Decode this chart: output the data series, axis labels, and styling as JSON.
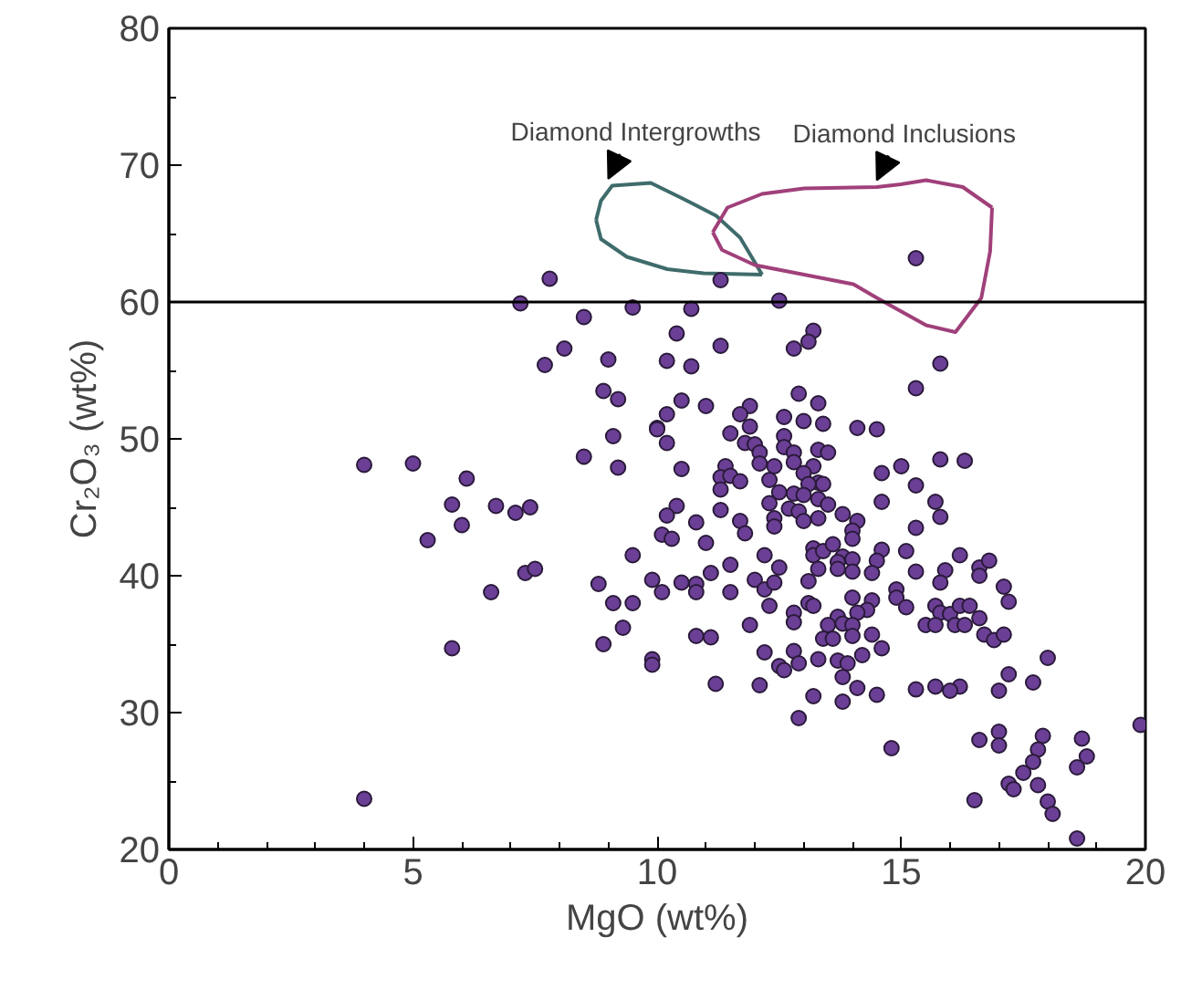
{
  "chart_data": {
    "type": "scatter",
    "xlabel": "MgO (wt%)",
    "ylabel": "Cr₂O₃ (wt%)",
    "xlim": [
      0,
      20
    ],
    "ylim": [
      20,
      80
    ],
    "xticks": [
      0,
      5,
      10,
      15,
      20
    ],
    "yticks": [
      20,
      30,
      40,
      50,
      60,
      70,
      80
    ],
    "grid": false,
    "marker": "circle",
    "ref_lines": [
      {
        "axis": "y",
        "value": 60,
        "color": "#000000"
      }
    ],
    "annotations": [
      {
        "text": "Diamond Intergrowths",
        "x": 9.0,
        "y": 69.0
      },
      {
        "text": "Diamond Inclusions",
        "x": 14.5,
        "y": 68.9
      }
    ],
    "series": [
      {
        "type": "line",
        "marker": "none",
        "color": "#3f6b6b",
        "x": [
          8.75,
          8.85,
          9.08,
          9.87,
          10.5,
          11.21,
          11.7,
          12.15
        ],
        "values": [
          66.0,
          67.4,
          68.5,
          68.7,
          67.6,
          66.3,
          64.7,
          62.0
        ]
      },
      {
        "type": "line",
        "marker": "none",
        "color": "#3f6b6b",
        "x": [
          8.75,
          8.85,
          9.38,
          10.21,
          10.95,
          12.15
        ],
        "values": [
          66.0,
          64.6,
          63.3,
          62.4,
          62.1,
          62.0
        ]
      },
      {
        "type": "line",
        "marker": "none",
        "color": "#a0407a",
        "x": [
          11.14,
          11.44,
          12.15,
          13.01,
          14.5,
          14.99,
          15.51,
          16.26,
          16.86
        ],
        "values": [
          65.1,
          66.9,
          67.9,
          68.3,
          68.4,
          68.6,
          68.9,
          68.4,
          66.9
        ]
      },
      {
        "type": "line",
        "marker": "none",
        "color": "#a0407a",
        "x": [
          11.14,
          11.33,
          12.0,
          13.01,
          14.02,
          14.5,
          15.51,
          16.11,
          16.64,
          16.82,
          16.86
        ],
        "values": [
          65.1,
          63.8,
          62.7,
          62.0,
          61.3,
          60.3,
          58.3,
          57.8,
          60.3,
          63.7,
          66.9
        ]
      },
      {
        "type": "scatter",
        "color": "#6b3f95",
        "x": [
          5.8,
          6.7,
          7.1,
          7.4,
          5.3,
          6.0,
          9.5,
          7.3,
          7.5,
          6.6,
          8.8,
          9.1,
          9.5,
          9.3,
          8.9,
          5.8,
          9.9,
          4.0,
          7.8,
          7.2,
          8.5,
          9.5,
          8.1,
          7.7,
          9.0,
          8.9,
          9.2,
          9.1,
          10.0,
          8.5,
          9.2,
          4.0,
          5.0,
          6.1,
          15.3,
          11.3,
          12.5,
          10.7,
          10.4,
          11.3,
          13.2,
          13.1,
          12.8,
          15.8,
          15.3,
          10.2,
          10.7,
          10.5,
          11.0,
          10.2,
          10.0,
          10.2,
          11.9,
          11.7,
          11.9,
          11.5,
          12.6,
          12.9,
          13.3,
          13.0,
          13.4,
          14.1,
          14.5,
          12.6,
          11.8,
          12.0,
          12.1,
          12.6,
          12.8,
          13.3,
          13.5,
          12.1,
          12.4,
          12.8,
          13.2,
          10.5,
          11.4,
          11.3,
          11.5,
          11.7,
          11.3,
          12.3,
          13.0,
          13.3,
          13.4,
          13.1,
          12.5,
          12.8,
          13.0,
          13.3,
          14.6,
          15.0,
          15.8,
          16.3,
          15.3,
          14.6,
          15.7,
          10.4,
          12.3,
          13.5,
          10.2,
          10.8,
          11.3,
          11.7,
          11.8,
          10.1,
          10.3,
          11.0,
          12.4,
          12.4,
          12.7,
          12.9,
          13.0,
          13.3,
          13.8,
          14.1,
          14.0,
          14.0,
          15.8,
          15.3,
          13.2,
          13.2,
          13.4,
          13.6,
          13.8,
          13.7,
          14.0,
          13.7,
          14.0,
          13.3,
          12.5,
          12.2,
          11.5,
          11.1,
          10.5,
          10.1,
          10.8,
          10.8,
          11.5,
          12.0,
          12.2,
          12.4,
          13.1,
          14.6,
          14.5,
          14.4,
          15.1,
          15.3,
          15.9,
          15.8,
          16.2,
          16.6,
          16.8,
          16.6,
          17.1,
          17.2,
          14.9,
          14.9,
          15.1,
          14.4,
          14.0,
          14.3,
          14.1,
          13.7,
          13.5,
          13.8,
          14.0,
          14.0,
          14.4,
          14.6,
          14.2,
          13.4,
          13.6,
          13.1,
          13.2,
          12.8,
          12.8,
          12.3,
          11.9,
          10.8,
          11.1,
          9.9,
          9.9,
          12.2,
          12.8,
          12.5,
          12.6,
          12.9,
          13.3,
          13.7,
          13.9,
          13.8,
          11.2,
          12.1,
          13.2,
          13.8,
          14.1,
          14.5,
          12.9,
          15.7,
          15.8,
          15.5,
          15.7,
          16.0,
          16.2,
          16.4,
          16.1,
          16.3,
          16.6,
          16.7,
          16.9,
          17.1,
          18.0,
          17.2,
          17.7,
          17.0,
          16.2,
          16.0,
          15.7,
          15.3,
          19.9,
          17.0,
          17.0,
          16.6,
          17.9,
          17.8,
          17.7,
          17.5,
          17.2,
          17.3,
          17.8,
          18.0,
          18.1,
          18.7,
          18.8,
          18.6,
          18.6,
          16.5,
          14.8
        ],
        "values": [
          45.2,
          45.1,
          44.6,
          45.0,
          42.6,
          43.7,
          41.5,
          40.2,
          40.5,
          38.8,
          39.4,
          38.0,
          38.0,
          36.2,
          35.0,
          34.7,
          39.7,
          23.7,
          61.7,
          59.9,
          58.9,
          59.6,
          56.6,
          55.4,
          55.8,
          53.5,
          52.9,
          50.2,
          50.8,
          48.7,
          47.9,
          48.1,
          48.2,
          47.1,
          63.2,
          61.6,
          60.1,
          59.5,
          57.7,
          56.8,
          57.9,
          57.1,
          56.6,
          55.5,
          53.7,
          55.7,
          55.3,
          52.8,
          52.4,
          51.8,
          50.7,
          49.7,
          52.4,
          51.8,
          50.9,
          50.4,
          51.6,
          53.3,
          52.6,
          51.3,
          51.1,
          50.8,
          50.7,
          50.2,
          49.7,
          49.6,
          49.0,
          49.4,
          49.0,
          49.2,
          49.0,
          48.2,
          48.0,
          48.3,
          48.0,
          47.8,
          48.0,
          47.2,
          47.3,
          46.9,
          46.3,
          47.0,
          47.5,
          46.8,
          46.7,
          46.7,
          46.1,
          46.0,
          45.9,
          45.6,
          47.5,
          48.0,
          48.5,
          48.4,
          46.6,
          45.4,
          45.4,
          45.1,
          45.3,
          45.2,
          44.4,
          43.9,
          44.8,
          44.0,
          43.1,
          43.0,
          42.7,
          42.4,
          44.2,
          43.6,
          44.9,
          44.7,
          44.0,
          44.2,
          44.5,
          44.0,
          43.3,
          42.7,
          44.3,
          43.5,
          42.0,
          41.5,
          41.8,
          42.3,
          41.4,
          41.0,
          41.2,
          40.5,
          40.3,
          40.5,
          40.6,
          41.5,
          40.8,
          40.2,
          39.5,
          38.8,
          39.4,
          38.8,
          38.8,
          39.7,
          39.0,
          39.5,
          39.6,
          41.9,
          41.1,
          40.2,
          41.8,
          40.3,
          40.4,
          39.5,
          41.5,
          40.6,
          41.1,
          40.0,
          39.2,
          38.1,
          39.0,
          38.4,
          37.7,
          38.2,
          38.4,
          37.5,
          37.3,
          37.0,
          36.4,
          36.5,
          36.4,
          35.6,
          35.7,
          34.7,
          34.2,
          35.4,
          35.4,
          38.0,
          37.8,
          37.3,
          36.6,
          37.8,
          36.4,
          35.6,
          35.5,
          33.9,
          33.5,
          34.4,
          34.5,
          33.4,
          33.1,
          33.6,
          33.9,
          33.8,
          33.6,
          32.6,
          32.1,
          32.0,
          31.2,
          30.8,
          31.8,
          31.3,
          29.6,
          37.8,
          37.3,
          36.4,
          36.4,
          37.2,
          37.8,
          37.8,
          36.4,
          36.4,
          36.9,
          35.7,
          35.3,
          35.7,
          34.0,
          32.8,
          32.2,
          31.6,
          31.9,
          31.6,
          31.9,
          31.7,
          29.1,
          28.6,
          27.6,
          28.0,
          28.3,
          27.3,
          26.4,
          25.6,
          24.8,
          24.4,
          24.7,
          23.5,
          22.6,
          28.1,
          26.8,
          26.0,
          20.8,
          23.6,
          27.4
        ]
      }
    ]
  }
}
